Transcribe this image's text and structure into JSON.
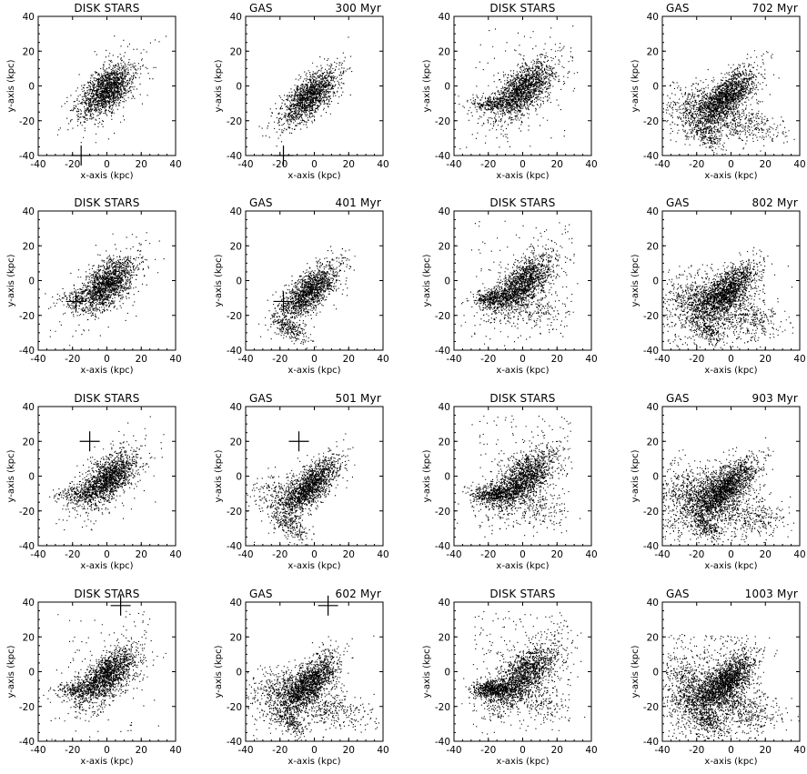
{
  "figure": {
    "ink_color": "#000000",
    "background": "#ffffff"
  },
  "chart_data": {
    "type": "scatter",
    "axes": {
      "xlabel": "x-axis (kpc)",
      "ylabel": "y-axis (kpc)",
      "xlim": [
        -40,
        40
      ],
      "ylim": [
        -40,
        40
      ],
      "ticks": [
        -40,
        -20,
        0,
        20,
        40
      ],
      "tick_labels": [
        "-40",
        "-20",
        "0",
        "20",
        "40"
      ]
    },
    "panels": [
      {
        "row": 0,
        "col": 0,
        "title": "DISK STARS",
        "time": "",
        "component": "stars",
        "morph": 0,
        "marker": [
          -15,
          -40
        ]
      },
      {
        "row": 0,
        "col": 1,
        "title": "GAS",
        "time": "300 Myr",
        "component": "gas",
        "morph": 0,
        "marker": [
          -18,
          -40
        ]
      },
      {
        "row": 0,
        "col": 2,
        "title": "DISK STARS",
        "time": "",
        "component": "stars",
        "morph": 2,
        "marker": null
      },
      {
        "row": 0,
        "col": 3,
        "title": "GAS",
        "time": "702 Myr",
        "component": "gas",
        "morph": 2,
        "marker": null
      },
      {
        "row": 1,
        "col": 0,
        "title": "DISK STARS",
        "time": "",
        "component": "stars",
        "morph": 1,
        "marker": [
          -18,
          -12
        ]
      },
      {
        "row": 1,
        "col": 1,
        "title": "GAS",
        "time": "401 Myr",
        "component": "gas",
        "morph": 1,
        "marker": [
          -18,
          -12
        ]
      },
      {
        "row": 1,
        "col": 2,
        "title": "DISK STARS",
        "time": "",
        "component": "stars",
        "morph": 3,
        "marker": null
      },
      {
        "row": 1,
        "col": 3,
        "title": "GAS",
        "time": "802 Myr",
        "component": "gas",
        "morph": 3,
        "marker": null
      },
      {
        "row": 2,
        "col": 0,
        "title": "DISK STARS",
        "time": "",
        "component": "stars",
        "morph": 1.5,
        "marker": [
          -10,
          20
        ]
      },
      {
        "row": 2,
        "col": 1,
        "title": "GAS",
        "time": "501 Myr",
        "component": "gas",
        "morph": 1.5,
        "marker": [
          -9,
          20
        ]
      },
      {
        "row": 2,
        "col": 2,
        "title": "DISK STARS",
        "time": "",
        "component": "stars",
        "morph": 4,
        "marker": null
      },
      {
        "row": 2,
        "col": 3,
        "title": "GAS",
        "time": "903 Myr",
        "component": "gas",
        "morph": 4,
        "marker": null
      },
      {
        "row": 3,
        "col": 0,
        "title": "DISK STARS",
        "time": "",
        "component": "stars",
        "morph": 2,
        "marker": [
          8,
          38
        ]
      },
      {
        "row": 3,
        "col": 1,
        "title": "GAS",
        "time": "602 Myr",
        "component": "gas",
        "morph": 2,
        "marker": [
          8,
          38
        ]
      },
      {
        "row": 3,
        "col": 2,
        "title": "DISK STARS",
        "time": "",
        "component": "stars",
        "morph": 5,
        "marker": null
      },
      {
        "row": 3,
        "col": 3,
        "title": "GAS",
        "time": "1003 Myr",
        "component": "gas",
        "morph": 5,
        "marker": null
      }
    ]
  }
}
